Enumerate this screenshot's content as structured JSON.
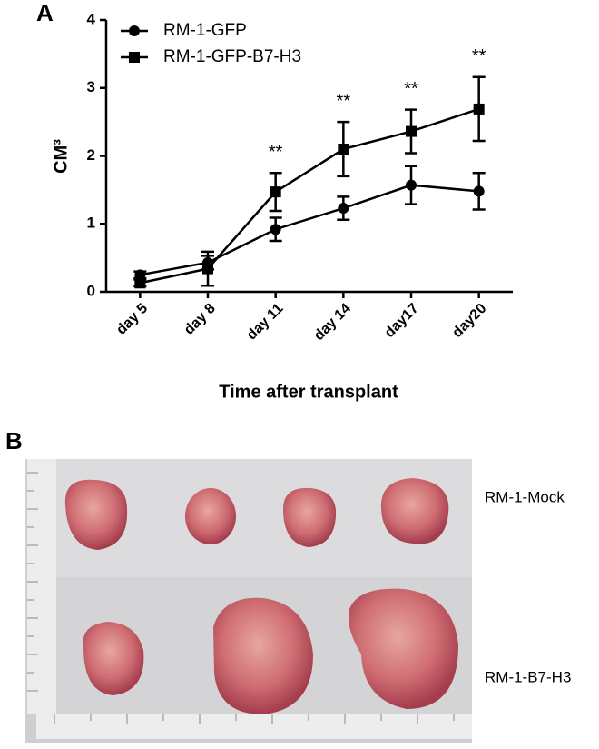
{
  "chart_data": {
    "type": "line",
    "panel": "A",
    "categories": [
      "day 5",
      "day 8",
      "day 11",
      "day 14",
      "day17",
      "day20"
    ],
    "series": [
      {
        "name": "RM-1-GFP",
        "color": "#000000",
        "marker": "circle",
        "values": [
          0.25,
          0.43,
          0.92,
          1.23,
          1.57,
          1.48
        ],
        "errors": [
          0.05,
          0.1,
          0.17,
          0.17,
          0.28,
          0.27
        ]
      },
      {
        "name": "RM-1-GFP-B7-H3",
        "color": "#000000",
        "marker": "square",
        "values": [
          0.13,
          0.34,
          1.47,
          2.1,
          2.36,
          2.69
        ],
        "errors": [
          0.05,
          0.25,
          0.28,
          0.4,
          0.32,
          0.47
        ]
      }
    ],
    "ylim": [
      0,
      4
    ],
    "yticks": [
      0,
      1,
      2,
      3,
      4
    ],
    "ylabel": "CM³",
    "xlabel": "Time after transplant",
    "legend": "upper left",
    "annotations": [
      {
        "text": "**",
        "x": "day 11"
      },
      {
        "text": "**",
        "x": "day 14"
      },
      {
        "text": "**",
        "x": "day17"
      },
      {
        "text": "**",
        "x": "day20"
      }
    ]
  },
  "photo": {
    "panel": "B",
    "labels": [
      "RM-1-Mock",
      "RM-1-B7-H3"
    ]
  }
}
